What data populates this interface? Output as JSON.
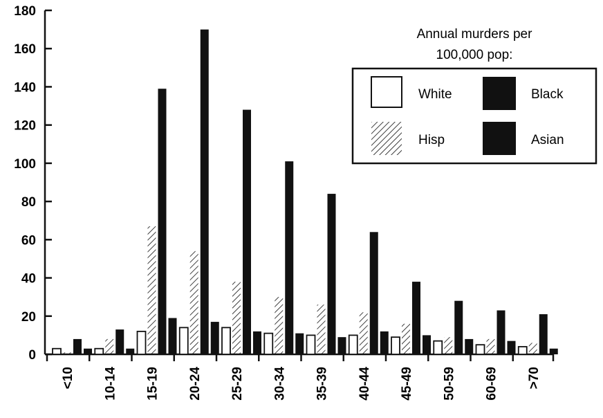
{
  "chart_data": {
    "type": "bar",
    "title": "Annual murders per\n100,000 pop:",
    "xlabel": "",
    "ylabel": "",
    "ylim": [
      0,
      180
    ],
    "yticks": [
      0,
      20,
      40,
      60,
      80,
      100,
      120,
      140,
      160,
      180
    ],
    "categories": [
      "<10",
      "10-14",
      "15-19",
      "20-24",
      "25-29",
      "30-34",
      "35-39",
      "40-44",
      "45-49",
      "50-59",
      "60-69",
      ">70"
    ],
    "series": [
      {
        "name": "White",
        "pattern": "white",
        "values": [
          3,
          3,
          12,
          14,
          14,
          11,
          10,
          10,
          9,
          7,
          5,
          4
        ]
      },
      {
        "name": "Hisp",
        "pattern": "hatch",
        "values": [
          1,
          8,
          67,
          54,
          38,
          30,
          26,
          22,
          16,
          9,
          8,
          6
        ]
      },
      {
        "name": "Black",
        "pattern": "black",
        "values": [
          8,
          13,
          139,
          170,
          128,
          101,
          84,
          64,
          38,
          28,
          23,
          21
        ]
      },
      {
        "name": "Asian",
        "pattern": "black",
        "values": [
          3,
          3,
          19,
          17,
          12,
          11,
          9,
          12,
          10,
          8,
          7,
          3
        ]
      }
    ],
    "legend": {
      "title_line1": "Annual murders per",
      "title_line2": "100,000 pop:",
      "placement": "top-right",
      "grid": false
    },
    "colors": {
      "fill_dark": "#111111",
      "fill_light": "#ffffff",
      "stroke": "#111111"
    }
  }
}
